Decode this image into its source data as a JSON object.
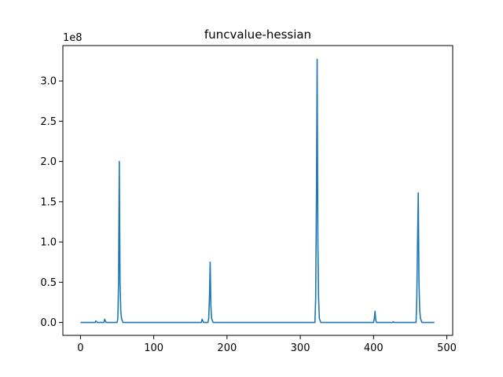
{
  "chart_data": {
    "type": "line",
    "title": "funcvalue-hessian",
    "xlabel": "",
    "ylabel": "",
    "y_offset_label": "1e8",
    "xlim": [
      -24,
      508
    ],
    "ylim": [
      -0.16,
      3.44
    ],
    "x_ticks": [
      {
        "value": 0,
        "label": "0"
      },
      {
        "value": 100,
        "label": "100"
      },
      {
        "value": 200,
        "label": "200"
      },
      {
        "value": 300,
        "label": "300"
      },
      {
        "value": 400,
        "label": "400"
      },
      {
        "value": 500,
        "label": "500"
      }
    ],
    "y_ticks": [
      {
        "value": 0.0,
        "label": "0.0"
      },
      {
        "value": 0.5,
        "label": "0.5"
      },
      {
        "value": 1.0,
        "label": "1.0"
      },
      {
        "value": 1.5,
        "label": "1.5"
      },
      {
        "value": 2.0,
        "label": "2.0"
      },
      {
        "value": 2.5,
        "label": "2.5"
      },
      {
        "value": 3.0,
        "label": "3.0"
      }
    ],
    "grid": false,
    "legend": "none",
    "series": [
      {
        "color": "#1f77b4",
        "x": [
          0,
          20,
          21,
          22,
          23,
          32,
          33,
          34,
          35,
          50,
          51,
          52,
          53,
          54,
          55,
          56,
          58,
          165,
          166,
          167,
          168,
          174,
          175,
          176,
          177,
          178,
          179,
          181,
          320,
          321,
          322,
          323,
          324,
          325,
          326,
          328,
          400,
          401,
          402,
          403,
          404,
          426,
          427,
          428,
          458,
          459,
          460,
          461,
          462,
          463,
          464,
          466,
          483
        ],
        "y": [
          0,
          0,
          0.02,
          0.01,
          0,
          0,
          0.04,
          0.02,
          0,
          0,
          0.05,
          0.5,
          2.0,
          0.5,
          0.15,
          0.05,
          0,
          0,
          0.04,
          0.02,
          0,
          0,
          0.05,
          0.3,
          0.75,
          0.2,
          0.05,
          0,
          0,
          0.3,
          1.5,
          3.27,
          1.0,
          0.3,
          0.05,
          0,
          0,
          0.05,
          0.14,
          0.03,
          0,
          0,
          0.01,
          0,
          0,
          0.3,
          1.0,
          1.61,
          0.5,
          0.15,
          0.05,
          0,
          0
        ]
      }
    ]
  }
}
